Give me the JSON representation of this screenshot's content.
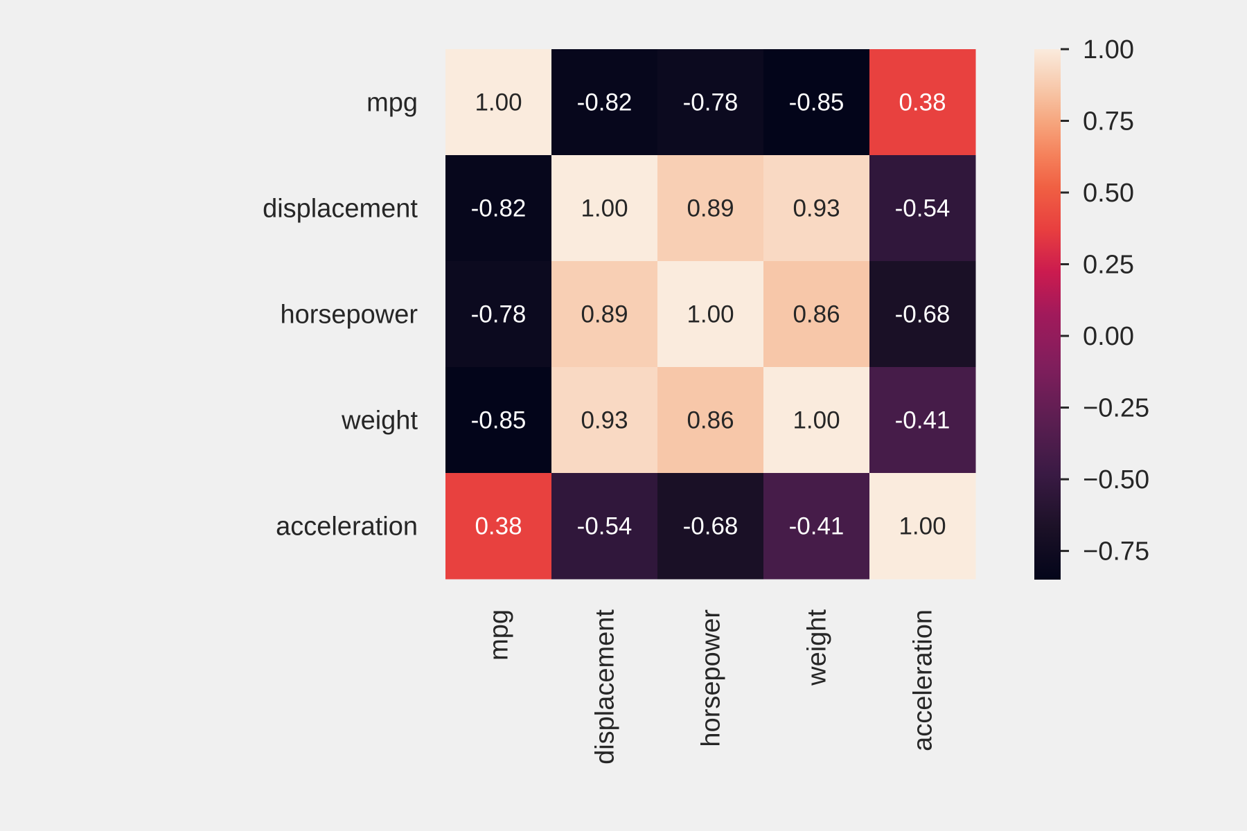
{
  "chart_data": {
    "type": "heatmap",
    "title": "",
    "xlabel": "",
    "ylabel": "",
    "x_categories": [
      "mpg",
      "displacement",
      "horsepower",
      "weight",
      "acceleration"
    ],
    "y_categories": [
      "mpg",
      "displacement",
      "horsepower",
      "weight",
      "acceleration"
    ],
    "values": [
      [
        1.0,
        -0.82,
        -0.78,
        -0.85,
        0.38
      ],
      [
        -0.82,
        1.0,
        0.89,
        0.93,
        -0.54
      ],
      [
        -0.78,
        0.89,
        1.0,
        0.86,
        -0.68
      ],
      [
        -0.85,
        0.93,
        0.86,
        1.0,
        -0.41
      ],
      [
        0.38,
        -0.54,
        -0.68,
        -0.41,
        1.0
      ]
    ],
    "annotations": [
      [
        "1.00",
        "-0.82",
        "-0.78",
        "-0.85",
        "0.38"
      ],
      [
        "-0.82",
        "1.00",
        "0.89",
        "0.93",
        "-0.54"
      ],
      [
        "-0.78",
        "0.89",
        "1.00",
        "0.86",
        "-0.68"
      ],
      [
        "-0.85",
        "0.93",
        "0.86",
        "1.00",
        "-0.41"
      ],
      [
        "0.38",
        "-0.54",
        "-0.68",
        "-0.41",
        "1.00"
      ]
    ],
    "colorbar": {
      "range": [
        -0.85,
        1.0
      ],
      "ticks": [
        1.0,
        0.75,
        0.5,
        0.25,
        0.0,
        -0.25,
        -0.5,
        -0.75
      ],
      "tick_labels": [
        "1.00",
        "0.75",
        "0.50",
        "0.25",
        "0.00",
        "−0.25",
        "−0.50",
        "−0.75"
      ],
      "colormap": "rocket",
      "colormap_stops": [
        {
          "v": 0.0,
          "c": "#03051a"
        },
        {
          "v": 0.1,
          "c": "#1c1127"
        },
        {
          "v": 0.2,
          "c": "#3a1a44"
        },
        {
          "v": 0.3,
          "c": "#5b1e51"
        },
        {
          "v": 0.4,
          "c": "#7f1e5c"
        },
        {
          "v": 0.5,
          "c": "#a11a5b"
        },
        {
          "v": 0.58,
          "c": "#cb1b4f"
        },
        {
          "v": 0.66,
          "c": "#e83f3f"
        },
        {
          "v": 0.74,
          "c": "#f06043"
        },
        {
          "v": 0.8,
          "c": "#f5815b"
        },
        {
          "v": 0.86,
          "c": "#f6a47c"
        },
        {
          "v": 0.92,
          "c": "#f7c5a6"
        },
        {
          "v": 1.0,
          "c": "#faebdd"
        }
      ]
    },
    "grid": false,
    "legend": "colorbar-right"
  }
}
